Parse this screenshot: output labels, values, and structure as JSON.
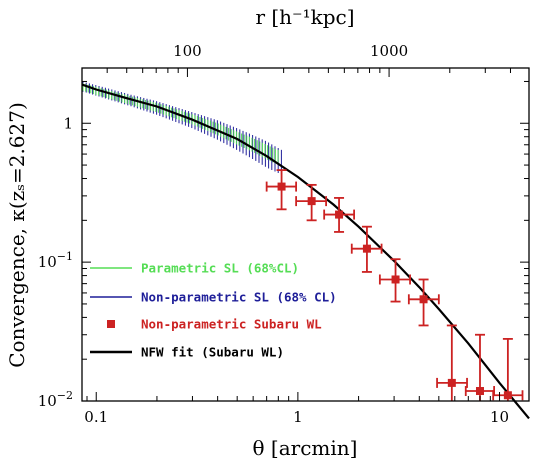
{
  "chart_data": {
    "type": "line",
    "xlabel_bottom": "θ [arcmin]",
    "xlabel_top": "r [h⁻¹kpc]",
    "ylabel": "Convergence, κ(zₛ=2.627)",
    "xscale": "log",
    "yscale": "log",
    "xlim": [
      0.085,
      14
    ],
    "ylim": [
      0.01,
      2.5
    ],
    "x_ticks": [
      {
        "value": 0.1,
        "label": "0.1"
      },
      {
        "value": 1,
        "label": "1"
      },
      {
        "value": 10,
        "label": "10"
      }
    ],
    "y_ticks": [
      {
        "value": 1,
        "label": "1",
        "base": "",
        "exp": ""
      },
      {
        "value": 0.1,
        "label": "",
        "base": "10",
        "exp": "−1"
      },
      {
        "value": 0.01,
        "label": "",
        "base": "10",
        "exp": "−2"
      }
    ],
    "top_ticks": [
      {
        "value": 0.2833,
        "label": "100"
      },
      {
        "value": 2.833,
        "label": "1000"
      }
    ],
    "top_kpc_per_arcmin": 353,
    "legend_position": "lower-left",
    "colors": {
      "parametric_sl": "#55dd55",
      "nonparametric_sl": "#1f1f99",
      "subaru_wl": "#cc2222",
      "nfw_fit": "#000000"
    },
    "series": [
      {
        "name": "Parametric SL (68%CL)",
        "kind": "band",
        "x": [
          0.085,
          0.1,
          0.15,
          0.2,
          0.3,
          0.4,
          0.5,
          0.6,
          0.7,
          0.8
        ],
        "lower": [
          1.72,
          1.6,
          1.35,
          1.2,
          0.98,
          0.82,
          0.7,
          0.62,
          0.55,
          0.5
        ],
        "upper": [
          1.95,
          1.83,
          1.56,
          1.4,
          1.16,
          1.0,
          0.87,
          0.78,
          0.7,
          0.64
        ]
      },
      {
        "name": "Non-parametric SL (68% CL)",
        "kind": "band",
        "x": [
          0.085,
          0.1,
          0.15,
          0.2,
          0.3,
          0.4,
          0.5,
          0.6,
          0.7,
          0.85
        ],
        "lower": [
          1.7,
          1.58,
          1.32,
          1.15,
          0.92,
          0.76,
          0.64,
          0.55,
          0.48,
          0.42
        ],
        "upper": [
          2.0,
          1.88,
          1.6,
          1.44,
          1.2,
          1.05,
          0.92,
          0.82,
          0.74,
          0.63
        ]
      },
      {
        "name": "Non-parametric Subaru WL",
        "kind": "points",
        "points": [
          {
            "x": 0.83,
            "y": 0.35,
            "xerr": [
              0.7,
              0.98
            ],
            "yerr": [
              0.24,
              0.46
            ]
          },
          {
            "x": 1.17,
            "y": 0.275,
            "xerr": [
              0.98,
              1.38
            ],
            "yerr": [
              0.2,
              0.36
            ]
          },
          {
            "x": 1.6,
            "y": 0.22,
            "xerr": [
              1.35,
              1.9
            ],
            "yerr": [
              0.165,
              0.29
            ]
          },
          {
            "x": 2.2,
            "y": 0.125,
            "xerr": [
              1.85,
              2.6
            ],
            "yerr": [
              0.085,
              0.18
            ]
          },
          {
            "x": 3.05,
            "y": 0.075,
            "xerr": [
              2.55,
              3.6
            ],
            "yerr": [
              0.052,
              0.105
            ]
          },
          {
            "x": 4.2,
            "y": 0.054,
            "xerr": [
              3.55,
              5.0
            ],
            "yerr": [
              0.035,
              0.075
            ]
          },
          {
            "x": 5.8,
            "y": 0.0135,
            "xerr": [
              4.9,
              6.9
            ],
            "yerr": [
              0.01,
              0.035
            ]
          },
          {
            "x": 8.0,
            "y": 0.0118,
            "xerr": [
              6.8,
              9.4
            ],
            "yerr": [
              0.01,
              0.03
            ]
          },
          {
            "x": 11.0,
            "y": 0.011,
            "xerr": [
              9.3,
              13.0
            ],
            "yerr": [
              0.01,
              0.028
            ]
          }
        ]
      },
      {
        "name": "NFW fit (Subaru WL)",
        "kind": "line",
        "x": [
          0.085,
          0.1,
          0.15,
          0.2,
          0.3,
          0.5,
          0.7,
          1.0,
          1.5,
          2.0,
          3.0,
          4.0,
          5.0,
          7.0,
          10.0,
          14.0
        ],
        "y": [
          1.9,
          1.75,
          1.48,
          1.32,
          1.06,
          0.77,
          0.58,
          0.41,
          0.26,
          0.18,
          0.102,
          0.066,
          0.046,
          0.026,
          0.0135,
          0.0075
        ]
      }
    ]
  }
}
